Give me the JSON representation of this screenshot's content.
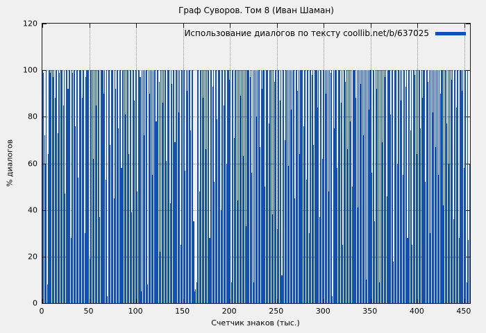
{
  "chart_data": {
    "type": "bar",
    "title": "Граф Суворов. Том 8 (Иван Шаман)",
    "xlabel": "Счетчик знаков (тыс.)",
    "ylabel": "% диалогов",
    "legend_label": "Использование диалогов по тексту coollib.net/b/637025",
    "legend_position": "top-right",
    "grid": true,
    "background_color": "#f0f0f0",
    "bar_color": "#1250b4",
    "xlim": [
      0,
      456
    ],
    "ylim": [
      0,
      120
    ],
    "x_ticks": [
      0,
      50,
      100,
      150,
      200,
      250,
      300,
      350,
      400,
      450
    ],
    "y_ticks": [
      0,
      20,
      40,
      60,
      80,
      100,
      120
    ],
    "x_start": 0,
    "x_step": 1,
    "values": [
      100,
      99,
      72,
      60,
      100,
      8,
      64,
      100,
      99,
      100,
      100,
      97,
      100,
      88,
      100,
      100,
      73,
      100,
      99,
      100,
      100,
      100,
      85,
      100,
      47,
      100,
      100,
      92,
      100,
      100,
      28,
      100,
      99,
      100,
      100,
      76,
      100,
      100,
      54,
      100,
      100,
      100,
      88,
      100,
      100,
      30,
      97,
      100,
      100,
      100,
      19,
      100,
      100,
      100,
      62,
      100,
      100,
      85,
      100,
      100,
      100,
      37,
      100,
      100,
      100,
      90,
      100,
      53,
      100,
      3,
      100,
      100,
      68,
      100,
      100,
      100,
      45,
      100,
      92,
      100,
      100,
      75,
      100,
      100,
      58,
      100,
      100,
      100,
      81,
      100,
      100,
      100,
      64,
      100,
      100,
      39,
      100,
      100,
      87,
      100,
      100,
      48,
      100,
      100,
      97,
      5,
      100,
      100,
      72,
      100,
      100,
      100,
      8,
      100,
      90,
      100,
      100,
      55,
      100,
      100,
      100,
      78,
      100,
      100,
      95,
      22,
      100,
      100,
      86,
      100,
      100,
      100,
      61,
      100,
      100,
      100,
      43,
      100,
      94,
      100,
      100,
      69,
      100,
      100,
      100,
      82,
      100,
      25,
      100,
      100,
      100,
      100,
      57,
      100,
      91,
      100,
      100,
      100,
      74,
      100,
      100,
      35,
      5,
      6,
      9,
      100,
      100,
      48,
      100,
      100,
      100,
      88,
      100,
      100,
      66,
      100,
      100,
      100,
      28,
      100,
      100,
      93,
      100,
      52,
      100,
      100,
      79,
      100,
      100,
      100,
      40,
      100,
      100,
      85,
      100,
      100,
      60,
      100,
      100,
      96,
      100,
      9,
      100,
      100,
      71,
      100,
      100,
      100,
      44,
      100,
      100,
      89,
      100,
      100,
      63,
      100,
      100,
      33,
      100,
      100,
      100,
      97,
      100,
      56,
      100,
      9,
      100,
      100,
      80,
      100,
      100,
      100,
      67,
      100,
      92,
      100,
      100,
      50,
      100,
      100,
      100,
      77,
      100,
      100,
      100,
      38,
      100,
      95,
      100,
      100,
      32,
      100,
      100,
      87,
      100,
      12,
      100,
      100,
      70,
      100,
      100,
      100,
      59,
      100,
      100,
      83,
      100,
      100,
      100,
      45,
      100,
      100,
      91,
      100,
      64,
      100,
      100,
      100,
      76,
      100,
      100,
      53,
      100,
      100,
      30,
      100,
      100,
      98,
      100,
      68,
      100,
      100,
      100,
      84,
      100,
      37,
      100,
      100,
      62,
      100,
      100,
      100,
      90,
      100,
      100,
      48,
      100,
      99,
      100,
      3,
      100,
      75,
      100,
      100,
      58,
      100,
      100,
      100,
      86,
      100,
      25,
      100,
      100,
      95,
      100,
      66,
      100,
      100,
      78,
      100,
      50,
      100,
      100,
      100,
      88,
      100,
      41,
      100,
      100,
      94,
      100,
      100,
      72,
      100,
      100,
      10,
      100,
      100,
      83,
      100,
      100,
      56,
      100,
      100,
      35,
      100,
      92,
      100,
      100,
      9,
      100,
      100,
      69,
      100,
      100,
      97,
      100,
      46,
      100,
      100,
      100,
      81,
      100,
      100,
      18,
      100,
      100,
      100,
      60,
      100,
      100,
      100,
      87,
      100,
      55,
      100,
      100,
      93,
      100,
      28,
      100,
      100,
      74,
      100,
      25,
      100,
      100,
      98,
      100,
      64,
      100,
      100,
      100,
      75,
      100,
      88,
      100,
      100,
      52,
      100,
      100,
      95,
      100,
      30,
      100,
      100,
      82,
      100,
      100,
      67,
      100,
      100,
      55,
      100,
      90,
      100,
      100,
      42,
      100,
      100,
      100,
      77,
      100,
      60,
      100,
      100,
      96,
      100,
      36,
      100,
      100,
      84,
      100,
      100,
      28,
      100,
      100,
      91,
      100,
      58,
      100,
      100,
      9,
      100,
      27,
      60
    ]
  }
}
